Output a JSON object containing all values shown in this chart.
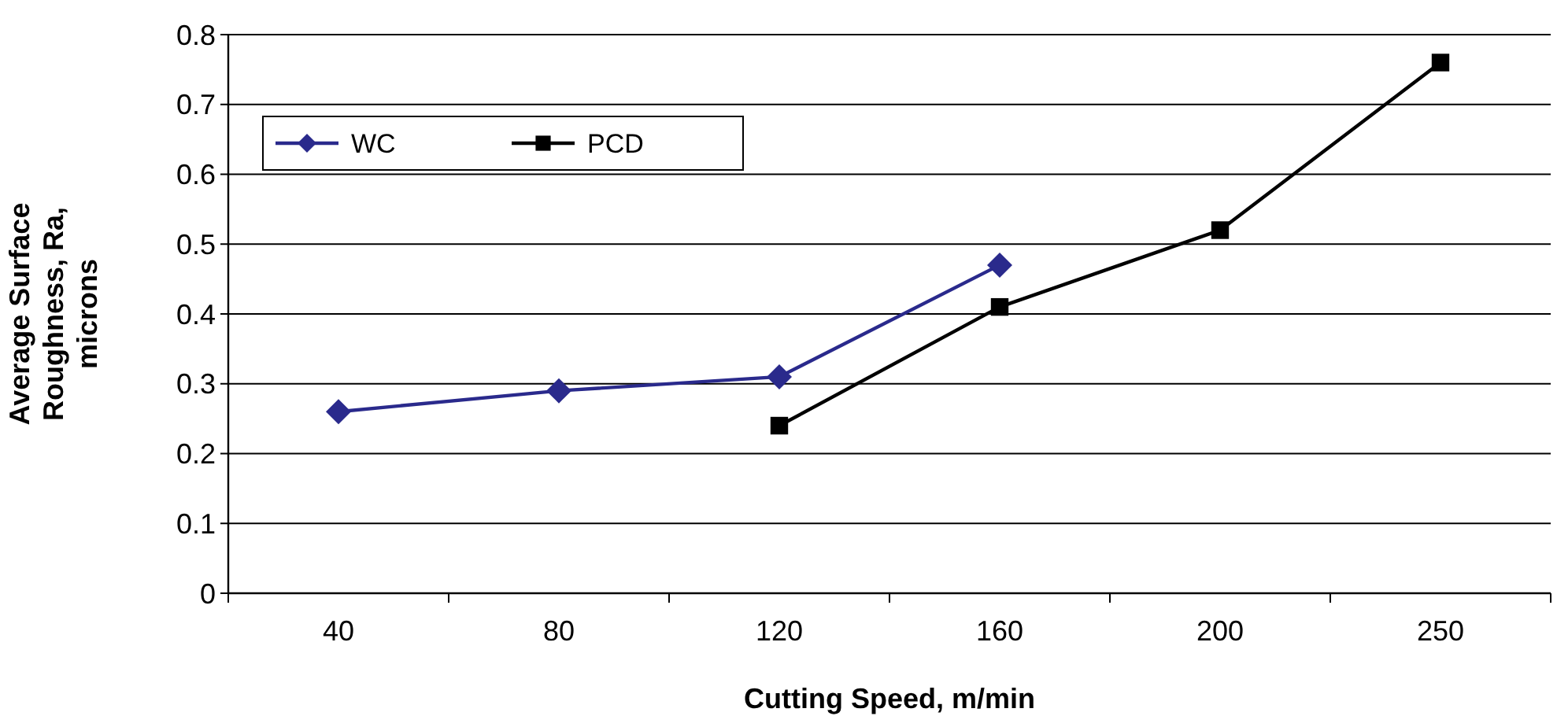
{
  "chart_data": {
    "type": "line",
    "xlabel": "Cutting Speed, m/min",
    "ylabel": "Average Surface Roughness, Ra, microns",
    "categories": [
      "40",
      "80",
      "120",
      "160",
      "200",
      "250"
    ],
    "ylim": [
      0,
      0.8
    ],
    "yticks": [
      0,
      0.1,
      0.2,
      0.3,
      0.4,
      0.5,
      0.6,
      0.7,
      0.8
    ],
    "grid": "y",
    "legend": "top left",
    "series": [
      {
        "name": "WC",
        "color": "#2a2a8c",
        "marker": "diamond",
        "values": [
          0.26,
          0.29,
          0.31,
          0.47,
          null,
          null
        ]
      },
      {
        "name": "PCD",
        "color": "#000000",
        "marker": "square",
        "values": [
          null,
          null,
          0.24,
          0.41,
          0.52,
          0.76
        ]
      }
    ]
  }
}
